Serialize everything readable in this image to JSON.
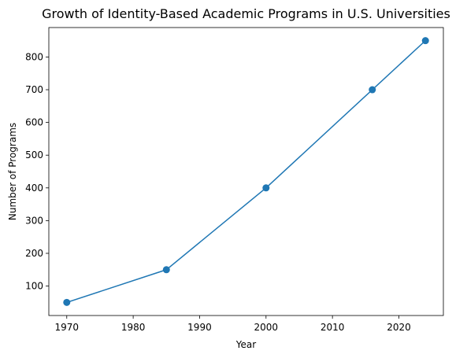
{
  "chart_data": {
    "type": "line",
    "title": "Growth of Identity-Based Academic Programs in U.S. Universities",
    "xlabel": "Year",
    "ylabel": "Number of Programs",
    "x": [
      1970,
      1985,
      2000,
      2016,
      2024
    ],
    "series": [
      {
        "values": [
          50,
          150,
          400,
          700,
          850
        ],
        "color": "#1f77b4",
        "marker": "circle"
      }
    ],
    "xlim": [
      1967.3,
      2026.7
    ],
    "ylim": [
      10,
      890
    ],
    "xticks": [
      1970,
      1980,
      1990,
      2000,
      2010,
      2020
    ],
    "yticks": [
      100,
      200,
      300,
      400,
      500,
      600,
      700,
      800
    ],
    "grid": false,
    "legend": "none"
  }
}
